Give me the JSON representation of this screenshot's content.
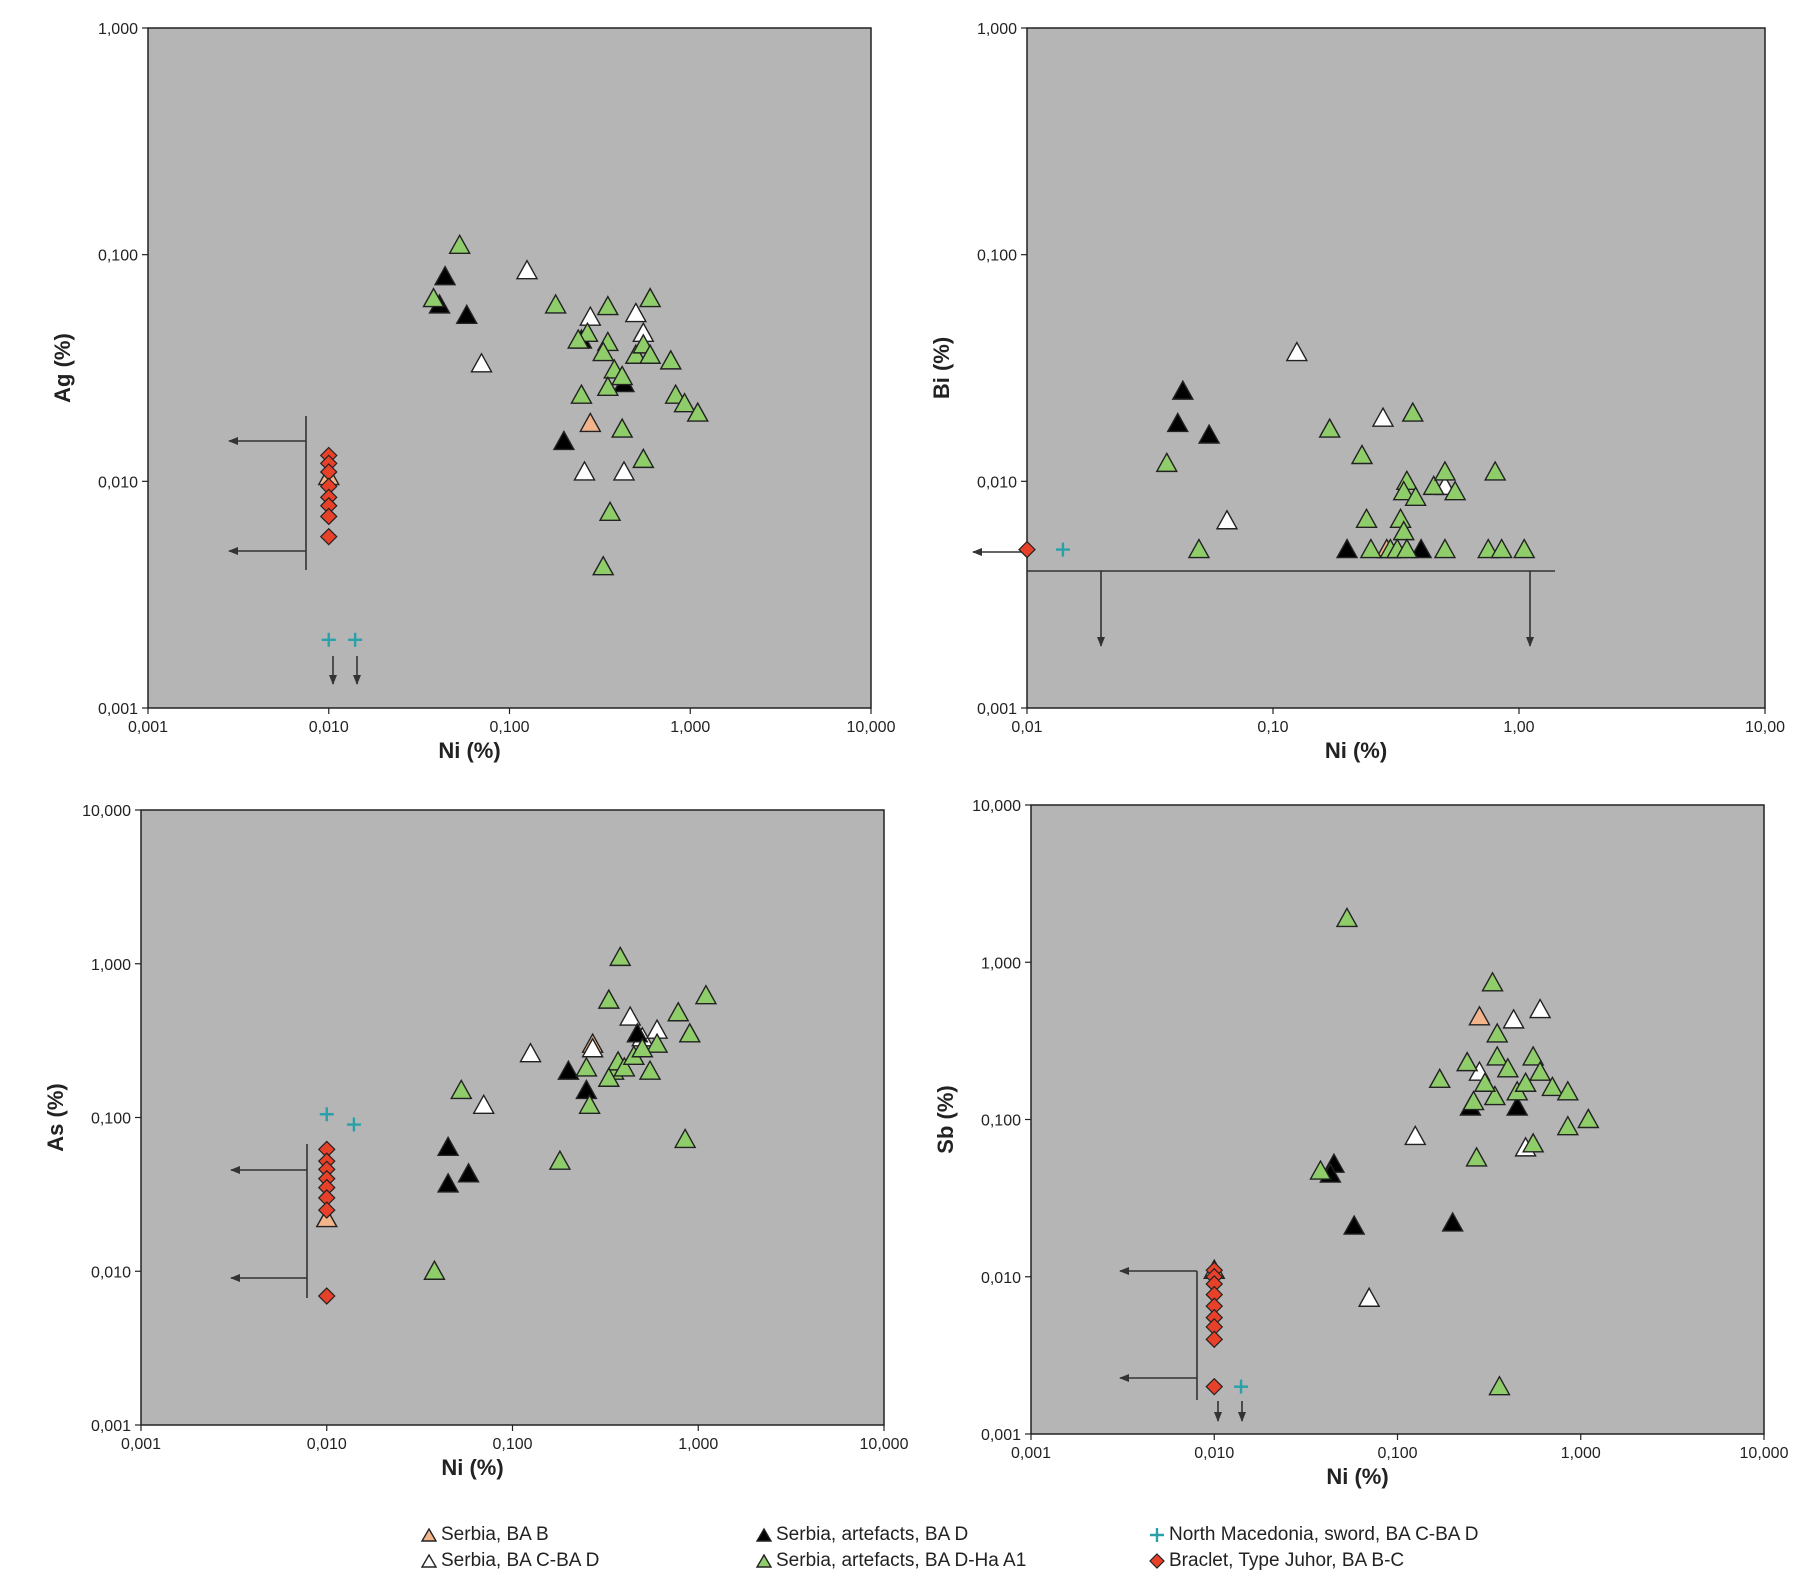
{
  "chart_data": [
    {
      "type": "scatter",
      "title": "",
      "xlabel": "Ni (%)",
      "ylabel": "Ag (%)",
      "xscale": "log",
      "yscale": "log",
      "xlim": [
        0.001,
        10
      ],
      "ylim": [
        0.001,
        1
      ],
      "xticks": [
        "0,001",
        "0,010",
        "0,100",
        "1,000",
        "10,000"
      ],
      "yticks": [
        "0,001",
        "0,010",
        "0,100",
        "1,000"
      ],
      "series": [
        {
          "name": "Serbia, BA B",
          "points": [
            [
              0.28,
              0.018
            ],
            [
              0.01,
              0.0105
            ]
          ]
        },
        {
          "name": "Serbia, BA C-BA D",
          "points": [
            [
              0.125,
              0.085
            ],
            [
              0.07,
              0.033
            ],
            [
              0.28,
              0.053
            ],
            [
              0.5,
              0.055
            ],
            [
              0.26,
              0.011
            ],
            [
              0.43,
              0.011
            ],
            [
              0.55,
              0.045
            ]
          ]
        },
        {
          "name": "Serbia, artefacts, BA D",
          "points": [
            [
              0.044,
              0.08
            ],
            [
              0.041,
              0.06
            ],
            [
              0.058,
              0.054
            ],
            [
              0.2,
              0.015
            ],
            [
              0.43,
              0.027
            ],
            [
              0.25,
              0.042
            ]
          ]
        },
        {
          "name": "Serbia, artefacts, BA D-Ha A1",
          "points": [
            [
              0.053,
              0.11
            ],
            [
              0.038,
              0.064
            ],
            [
              0.18,
              0.06
            ],
            [
              0.35,
              0.059
            ],
            [
              0.6,
              0.064
            ],
            [
              0.27,
              0.045
            ],
            [
              0.24,
              0.042
            ],
            [
              0.35,
              0.041
            ],
            [
              0.33,
              0.037
            ],
            [
              0.5,
              0.036
            ],
            [
              0.55,
              0.04
            ],
            [
              0.6,
              0.036
            ],
            [
              0.78,
              0.034
            ],
            [
              0.38,
              0.031
            ],
            [
              0.42,
              0.029
            ],
            [
              0.35,
              0.026
            ],
            [
              0.25,
              0.024
            ],
            [
              0.83,
              0.024
            ],
            [
              0.93,
              0.022
            ],
            [
              1.1,
              0.02
            ],
            [
              0.42,
              0.017
            ],
            [
              0.55,
              0.0125
            ],
            [
              0.36,
              0.0073
            ],
            [
              0.33,
              0.0042
            ]
          ]
        },
        {
          "name": "North Macedonia, sword, BA C-BA D",
          "points": [
            [
              0.01,
              0.002
            ],
            [
              0.014,
              0.002
            ]
          ]
        },
        {
          "name": "Braclet, Type Juhor, BA B-C",
          "points": [
            [
              0.01,
              0.013
            ],
            [
              0.01,
              0.012
            ],
            [
              0.01,
              0.011
            ],
            [
              0.01,
              0.0095
            ],
            [
              0.01,
              0.0085
            ],
            [
              0.01,
              0.0078
            ],
            [
              0.01,
              0.007
            ],
            [
              0.01,
              0.0057
            ]
          ]
        }
      ]
    },
    {
      "type": "scatter",
      "title": "",
      "xlabel": "Ni (%)",
      "ylabel": "Bi (%)",
      "xscale": "log",
      "yscale": "log",
      "xlim": [
        0.01,
        10
      ],
      "ylim": [
        0.001,
        1
      ],
      "xticks": [
        "0,01",
        "0,10",
        "1,00",
        "10,00"
      ],
      "yticks": [
        "0,001",
        "0,010",
        "0,100",
        "1,000"
      ],
      "series": [
        {
          "name": "Serbia, BA B",
          "points": [
            [
              0.29,
              0.005
            ]
          ]
        },
        {
          "name": "Serbia, BA C-BA D",
          "points": [
            [
              0.125,
              0.037
            ],
            [
              0.28,
              0.019
            ],
            [
              0.065,
              0.0067
            ],
            [
              0.5,
              0.0095
            ]
          ]
        },
        {
          "name": "Serbia, artefacts, BA D",
          "points": [
            [
              0.043,
              0.025
            ],
            [
              0.041,
              0.018
            ],
            [
              0.055,
              0.016
            ],
            [
              0.2,
              0.005
            ],
            [
              0.4,
              0.005
            ]
          ]
        },
        {
          "name": "Serbia, artefacts, BA D-Ha A1",
          "points": [
            [
              0.037,
              0.012
            ],
            [
              0.05,
              0.005
            ],
            [
              0.17,
              0.017
            ],
            [
              0.23,
              0.013
            ],
            [
              0.37,
              0.02
            ],
            [
              0.35,
              0.01
            ],
            [
              0.34,
              0.009
            ],
            [
              0.38,
              0.0085
            ],
            [
              0.45,
              0.0095
            ],
            [
              0.5,
              0.011
            ],
            [
              0.55,
              0.009
            ],
            [
              0.8,
              0.011
            ],
            [
              0.24,
              0.0068
            ],
            [
              0.33,
              0.0068
            ],
            [
              0.34,
              0.006
            ],
            [
              0.25,
              0.005
            ],
            [
              0.3,
              0.005
            ],
            [
              0.32,
              0.005
            ],
            [
              0.35,
              0.005
            ],
            [
              0.5,
              0.005
            ],
            [
              0.75,
              0.005
            ],
            [
              0.85,
              0.005
            ],
            [
              1.05,
              0.005
            ]
          ]
        },
        {
          "name": "North Macedonia, sword, BA C-BA D",
          "points": [
            [
              0.014,
              0.005
            ]
          ]
        },
        {
          "name": "Braclet, Type Juhor, BA B-C",
          "points": [
            [
              0.01,
              0.005
            ]
          ]
        }
      ]
    },
    {
      "type": "scatter",
      "title": "",
      "xlabel": "Ni (%)",
      "ylabel": "As (%)",
      "xscale": "log",
      "yscale": "log",
      "xlim": [
        0.001,
        10
      ],
      "ylim": [
        0.001,
        10
      ],
      "xticks": [
        "0,001",
        "0,010",
        "0,100",
        "1,000",
        "10,000"
      ],
      "yticks": [
        "0,001",
        "0,010",
        "0,100",
        "1,000",
        "10,000"
      ],
      "series": [
        {
          "name": "Serbia, BA B",
          "points": [
            [
              0.27,
              0.3
            ],
            [
              0.01,
              0.022
            ]
          ]
        },
        {
          "name": "Serbia, BA C-BA D",
          "points": [
            [
              0.125,
              0.26
            ],
            [
              0.07,
              0.12
            ],
            [
              0.27,
              0.28
            ],
            [
              0.43,
              0.45
            ],
            [
              0.5,
              0.33
            ],
            [
              0.6,
              0.37
            ]
          ]
        },
        {
          "name": "Serbia, artefacts, BA D",
          "points": [
            [
              0.2,
              0.2
            ],
            [
              0.25,
              0.15
            ],
            [
              0.045,
              0.064
            ],
            [
              0.045,
              0.037
            ],
            [
              0.058,
              0.043
            ],
            [
              0.47,
              0.35
            ]
          ]
        },
        {
          "name": "Serbia, artefacts, BA D-Ha A1",
          "points": [
            [
              0.053,
              0.15
            ],
            [
              0.038,
              0.01
            ],
            [
              0.18,
              0.052
            ],
            [
              0.25,
              0.21
            ],
            [
              0.26,
              0.12
            ],
            [
              0.33,
              0.58
            ],
            [
              0.38,
              1.1
            ],
            [
              0.35,
              0.2
            ],
            [
              0.37,
              0.23
            ],
            [
              0.4,
              0.21
            ],
            [
              0.45,
              0.25
            ],
            [
              0.55,
              0.2
            ],
            [
              0.6,
              0.3
            ],
            [
              0.78,
              0.48
            ],
            [
              0.85,
              0.072
            ],
            [
              0.9,
              0.35
            ],
            [
              1.1,
              0.62
            ],
            [
              0.5,
              0.28
            ],
            [
              0.33,
              0.18
            ]
          ]
        },
        {
          "name": "North Macedonia, sword, BA C-BA D",
          "points": [
            [
              0.01,
              0.105
            ],
            [
              0.014,
              0.09
            ]
          ]
        },
        {
          "name": "Braclet, Type Juhor, BA B-C",
          "points": [
            [
              0.01,
              0.062
            ],
            [
              0.01,
              0.052
            ],
            [
              0.01,
              0.046
            ],
            [
              0.01,
              0.04
            ],
            [
              0.01,
              0.035
            ],
            [
              0.01,
              0.03
            ],
            [
              0.01,
              0.025
            ],
            [
              0.01,
              0.0069
            ]
          ]
        }
      ]
    },
    {
      "type": "scatter",
      "title": "",
      "xlabel": "Ni (%)",
      "ylabel": "Sb (%)",
      "xscale": "log",
      "yscale": "log",
      "xlim": [
        0.001,
        10
      ],
      "ylim": [
        0.001,
        10
      ],
      "xticks": [
        "0,001",
        "0,010",
        "0,100",
        "1,000",
        "10,000"
      ],
      "yticks": [
        "0,001",
        "0,010",
        "0,100",
        "1,000",
        "10,000"
      ],
      "series": [
        {
          "name": "Serbia, BA B",
          "points": [
            [
              0.28,
              0.45
            ],
            [
              0.01,
              0.011
            ]
          ]
        },
        {
          "name": "Serbia, BA C-BA D",
          "points": [
            [
              0.125,
              0.078
            ],
            [
              0.07,
              0.0073
            ],
            [
              0.28,
              0.2
            ],
            [
              0.43,
              0.43
            ],
            [
              0.5,
              0.066
            ],
            [
              0.6,
              0.5
            ]
          ]
        },
        {
          "name": "Serbia, artefacts, BA D",
          "points": [
            [
              0.045,
              0.052
            ],
            [
              0.043,
              0.045
            ],
            [
              0.058,
              0.021
            ],
            [
              0.2,
              0.022
            ],
            [
              0.25,
              0.12
            ],
            [
              0.45,
              0.12
            ]
          ]
        },
        {
          "name": "Serbia, artefacts, BA D-Ha A1",
          "points": [
            [
              0.053,
              1.9
            ],
            [
              0.038,
              0.047
            ],
            [
              0.17,
              0.18
            ],
            [
              0.24,
              0.23
            ],
            [
              0.26,
              0.13
            ],
            [
              0.27,
              0.057
            ],
            [
              0.33,
              0.74
            ],
            [
              0.35,
              0.35
            ],
            [
              0.35,
              0.25
            ],
            [
              0.34,
              0.14
            ],
            [
              0.4,
              0.21
            ],
            [
              0.45,
              0.15
            ],
            [
              0.5,
              0.17
            ],
            [
              0.55,
              0.25
            ],
            [
              0.6,
              0.2
            ],
            [
              0.7,
              0.16
            ],
            [
              0.85,
              0.15
            ],
            [
              0.85,
              0.09
            ],
            [
              1.1,
              0.1
            ],
            [
              0.55,
              0.07
            ],
            [
              0.36,
              0.002
            ],
            [
              0.3,
              0.17
            ]
          ]
        },
        {
          "name": "North Macedonia, sword, BA C-BA D",
          "points": [
            [
              0.01,
              0.002
            ],
            [
              0.014,
              0.002
            ]
          ]
        },
        {
          "name": "Braclet, Type Juhor, BA B-C",
          "points": [
            [
              0.01,
              0.011
            ],
            [
              0.01,
              0.01
            ],
            [
              0.01,
              0.009
            ],
            [
              0.01,
              0.0077
            ],
            [
              0.01,
              0.0065
            ],
            [
              0.01,
              0.0055
            ],
            [
              0.01,
              0.0048
            ],
            [
              0.01,
              0.004
            ],
            [
              0.01,
              0.002
            ]
          ]
        }
      ]
    }
  ],
  "legend": {
    "placement": "bottom",
    "items": [
      {
        "label": "Serbia, BA B",
        "marker": "triangle",
        "color": "#f2b48a"
      },
      {
        "label": "Serbia, BA C-BA D",
        "marker": "triangle",
        "color": "#ffffff"
      },
      {
        "label": "Serbia, artefacts, BA D",
        "marker": "triangle",
        "color": "#000000"
      },
      {
        "label": "Serbia, artefacts, BA D-Ha A1",
        "marker": "triangle",
        "color": "#8fcc6a"
      },
      {
        "label": "North Macedonia, sword, BA C-BA D",
        "marker": "plus",
        "color": "#2aa0a8"
      },
      {
        "label": "Braclet, Type Juhor, BA B-C",
        "marker": "diamond",
        "color": "#e8412a"
      }
    ]
  },
  "style": {
    "plot_background": "#b5b5b5",
    "frame_color": "#222222",
    "arrow_color": "#333333"
  }
}
